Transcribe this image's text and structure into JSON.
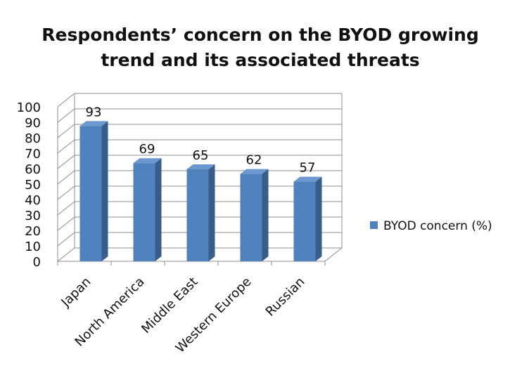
{
  "chart_data": {
    "type": "bar",
    "title_lines": [
      "Respondents’ concern on the BYOD growing",
      "trend and its associated threats"
    ],
    "categories": [
      "Japan",
      "North America",
      "Middle East",
      "Western Europe",
      "Russian"
    ],
    "series": [
      {
        "name": "BYOD concern (%)",
        "values": [
          93,
          69,
          65,
          62,
          57
        ]
      }
    ],
    "ylim": [
      0,
      100
    ],
    "yticks": [
      0,
      10,
      20,
      30,
      40,
      50,
      60,
      70,
      80,
      90,
      100
    ],
    "grid": true,
    "three_d": true,
    "legend_position": "right",
    "colors": {
      "bar_front": "#4f81bd",
      "bar_side": "#385d8a",
      "bar_top": "#6d97cf",
      "grid": "#8c8c8c"
    }
  }
}
